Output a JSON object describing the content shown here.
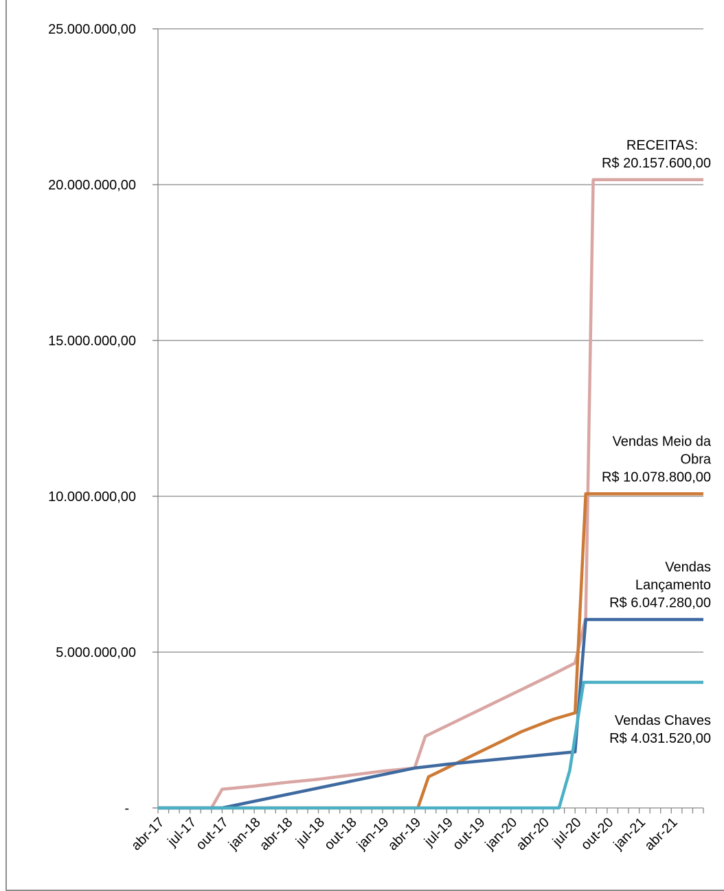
{
  "chart_data": {
    "type": "line",
    "ylim": [
      0,
      25000000
    ],
    "y_ticks": [
      {
        "value": 0,
        "label": "-"
      },
      {
        "value": 5000000,
        "label": "5.000.000,00"
      },
      {
        "value": 10000000,
        "label": "10.000.000,00"
      },
      {
        "value": 15000000,
        "label": "15.000.000,00"
      },
      {
        "value": 20000000,
        "label": "20.000.000,00"
      },
      {
        "value": 25000000,
        "label": "25.000.000,00"
      }
    ],
    "x_tick_labels": [
      "abr-17",
      "jul-17",
      "out-17",
      "jan-18",
      "abr-18",
      "jul-18",
      "out-18",
      "jan-19",
      "abr-19",
      "jul-19",
      "out-19",
      "jan-20",
      "abr-20",
      "jul-20",
      "out-20",
      "jan-21",
      "abr-21"
    ],
    "x_range_months": [
      0,
      51
    ],
    "grid": "horizontal",
    "series": [
      {
        "id": "receitas",
        "color": "#d9a6a3",
        "label_lines": [
          "RECEITAS:",
          "R$ 20.157.600,00"
        ],
        "points": [
          [
            0,
            0
          ],
          [
            2,
            0
          ],
          [
            4,
            0
          ],
          [
            5,
            0
          ],
          [
            6,
            600000
          ],
          [
            9,
            700000
          ],
          [
            12,
            820000
          ],
          [
            15,
            920000
          ],
          [
            18,
            1050000
          ],
          [
            21,
            1180000
          ],
          [
            24,
            1280000
          ],
          [
            25,
            2300000
          ],
          [
            28,
            2800000
          ],
          [
            31,
            3300000
          ],
          [
            34,
            3800000
          ],
          [
            37,
            4300000
          ],
          [
            39,
            4650000
          ],
          [
            40,
            6100000
          ],
          [
            40.7,
            20157600
          ],
          [
            51,
            20157600
          ]
        ]
      },
      {
        "id": "vendas-meio-obra",
        "color": "#cd7a36",
        "label_lines": [
          "Vendas Meio da",
          "Obra",
          "R$ 10.078.800,00"
        ],
        "points": [
          [
            0,
            0
          ],
          [
            24.3,
            0
          ],
          [
            25.3,
            1000000
          ],
          [
            28,
            1450000
          ],
          [
            31,
            1950000
          ],
          [
            34,
            2450000
          ],
          [
            37,
            2850000
          ],
          [
            39,
            3050000
          ],
          [
            40,
            10078800
          ],
          [
            51,
            10078800
          ]
        ]
      },
      {
        "id": "vendas-lancamento",
        "color": "#3e6aa0",
        "label_lines": [
          "Vendas",
          "Lançamento",
          "R$ 6.047.280,00"
        ],
        "points": [
          [
            0,
            0
          ],
          [
            6,
            0
          ],
          [
            24,
            1280000
          ],
          [
            27,
            1400000
          ],
          [
            30,
            1500000
          ],
          [
            33,
            1600000
          ],
          [
            36,
            1700000
          ],
          [
            39,
            1800000
          ],
          [
            40,
            6047280
          ],
          [
            51,
            6047280
          ]
        ]
      },
      {
        "id": "vendas-chaves",
        "color": "#4bb0c6",
        "label_lines": [
          "Vendas Chaves",
          "R$ 4.031.520,00"
        ],
        "points": [
          [
            0,
            0
          ],
          [
            37.5,
            0
          ],
          [
            38.5,
            1200000
          ],
          [
            39.8,
            4031520
          ],
          [
            51,
            4031520
          ]
        ]
      }
    ]
  }
}
